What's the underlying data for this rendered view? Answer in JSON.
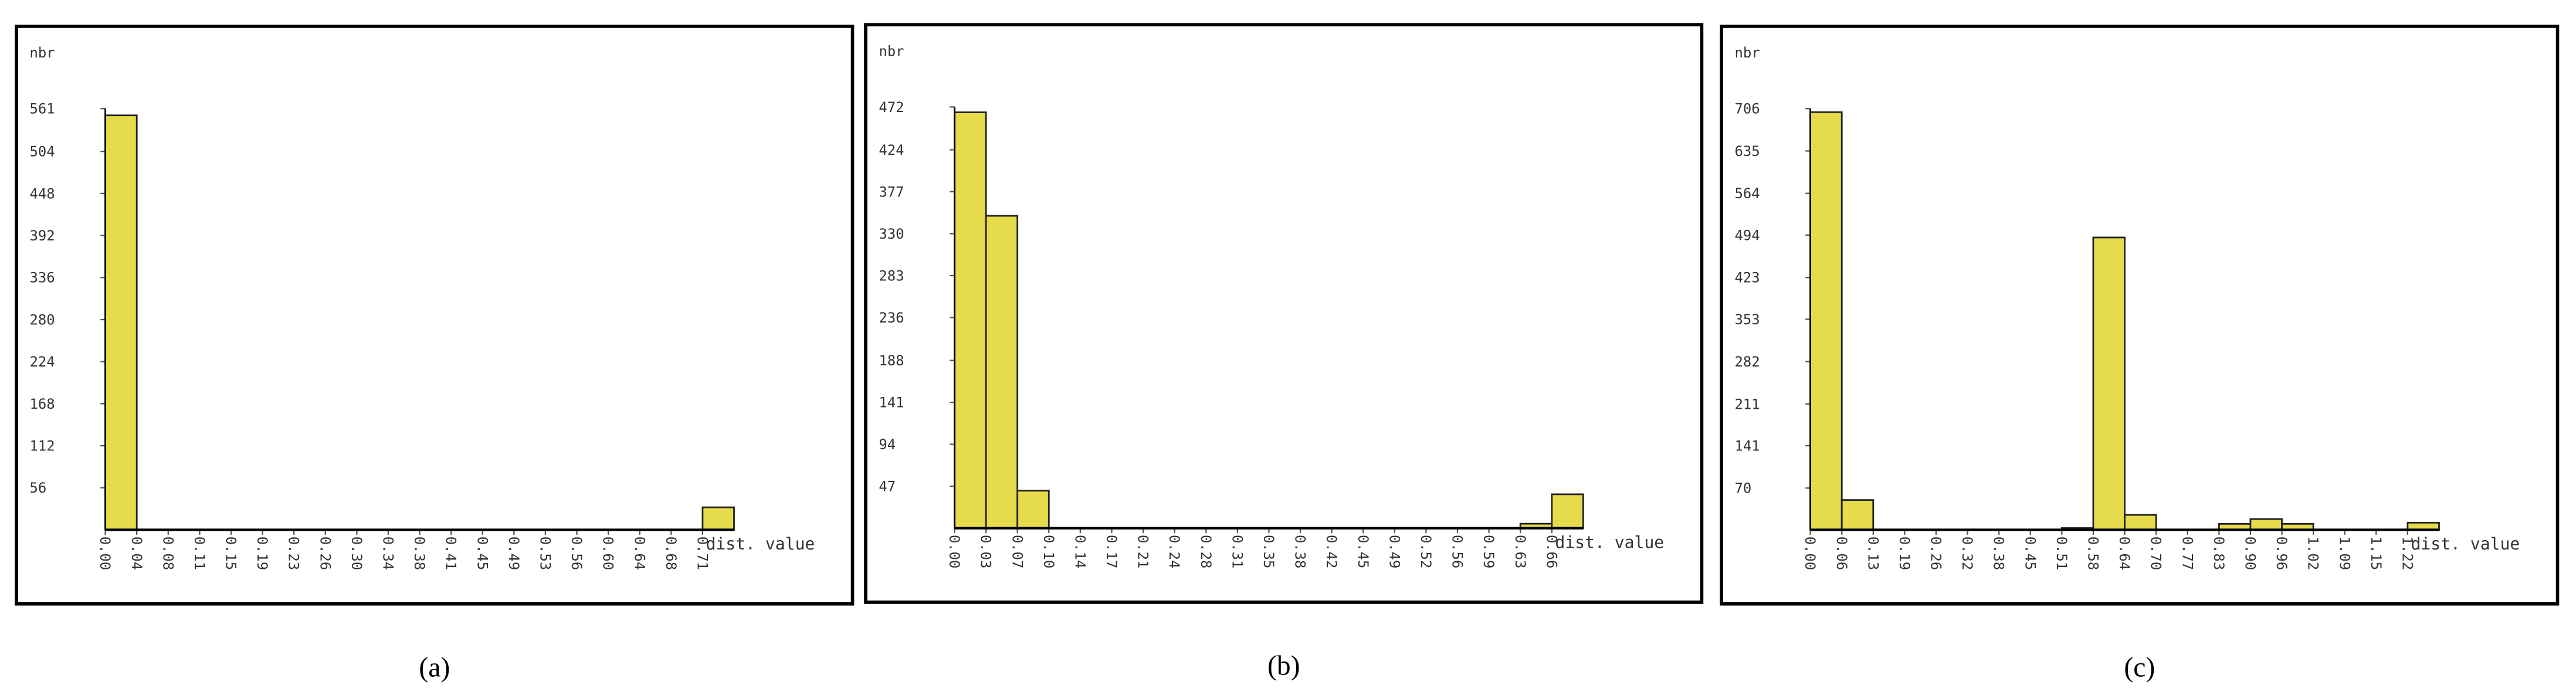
{
  "chart_data": [
    {
      "type": "bar",
      "caption": "(a)",
      "ylabel": "nbr",
      "xlabel": "dist. value",
      "color": "#e6db4a",
      "categories": [
        "0.00",
        "0.04",
        "0.08",
        "0.11",
        "0.15",
        "0.19",
        "0.23",
        "0.26",
        "0.30",
        "0.34",
        "0.38",
        "0.41",
        "0.45",
        "0.49",
        "0.53",
        "0.56",
        "0.60",
        "0.64",
        "0.68",
        "0.71"
      ],
      "values": [
        552,
        0,
        0,
        0,
        0,
        0,
        0,
        0,
        0,
        0,
        0,
        0,
        0,
        0,
        0,
        0,
        0,
        0,
        0,
        30
      ],
      "ylim": [
        0,
        561
      ],
      "yticks": [
        56,
        112,
        168,
        224,
        280,
        336,
        392,
        448,
        504,
        561
      ]
    },
    {
      "type": "bar",
      "caption": "(b)",
      "ylabel": "nbr",
      "xlabel": "dist. value",
      "color": "#e6db4a",
      "categories": [
        "0.00",
        "0.03",
        "0.07",
        "0.10",
        "0.14",
        "0.17",
        "0.21",
        "0.24",
        "0.28",
        "0.31",
        "0.35",
        "0.38",
        "0.42",
        "0.45",
        "0.49",
        "0.52",
        "0.56",
        "0.59",
        "0.63",
        "0.66"
      ],
      "values": [
        466,
        350,
        42,
        0,
        0,
        0,
        0,
        0,
        0,
        0,
        0,
        0,
        0,
        0,
        0,
        0,
        0,
        0,
        5,
        38
      ],
      "ylim": [
        0,
        472
      ],
      "yticks": [
        47,
        94,
        141,
        188,
        236,
        283,
        330,
        377,
        424,
        472
      ]
    },
    {
      "type": "bar",
      "caption": "(c)",
      "ylabel": "nbr",
      "xlabel": "dist. value",
      "color": "#e6db4a",
      "categories": [
        "0.00",
        "0.06",
        "0.13",
        "0.19",
        "0.26",
        "0.32",
        "0.38",
        "0.45",
        "0.51",
        "0.58",
        "0.64",
        "0.70",
        "0.77",
        "0.83",
        "0.90",
        "0.96",
        "1.02",
        "1.09",
        "1.15",
        "1.22"
      ],
      "values": [
        700,
        50,
        0,
        0,
        0,
        0,
        0,
        0,
        3,
        490,
        25,
        0,
        0,
        10,
        18,
        10,
        0,
        0,
        0,
        12
      ],
      "ylim": [
        0,
        706
      ],
      "yticks": [
        70,
        141,
        211,
        282,
        353,
        423,
        494,
        564,
        635,
        706
      ]
    }
  ]
}
